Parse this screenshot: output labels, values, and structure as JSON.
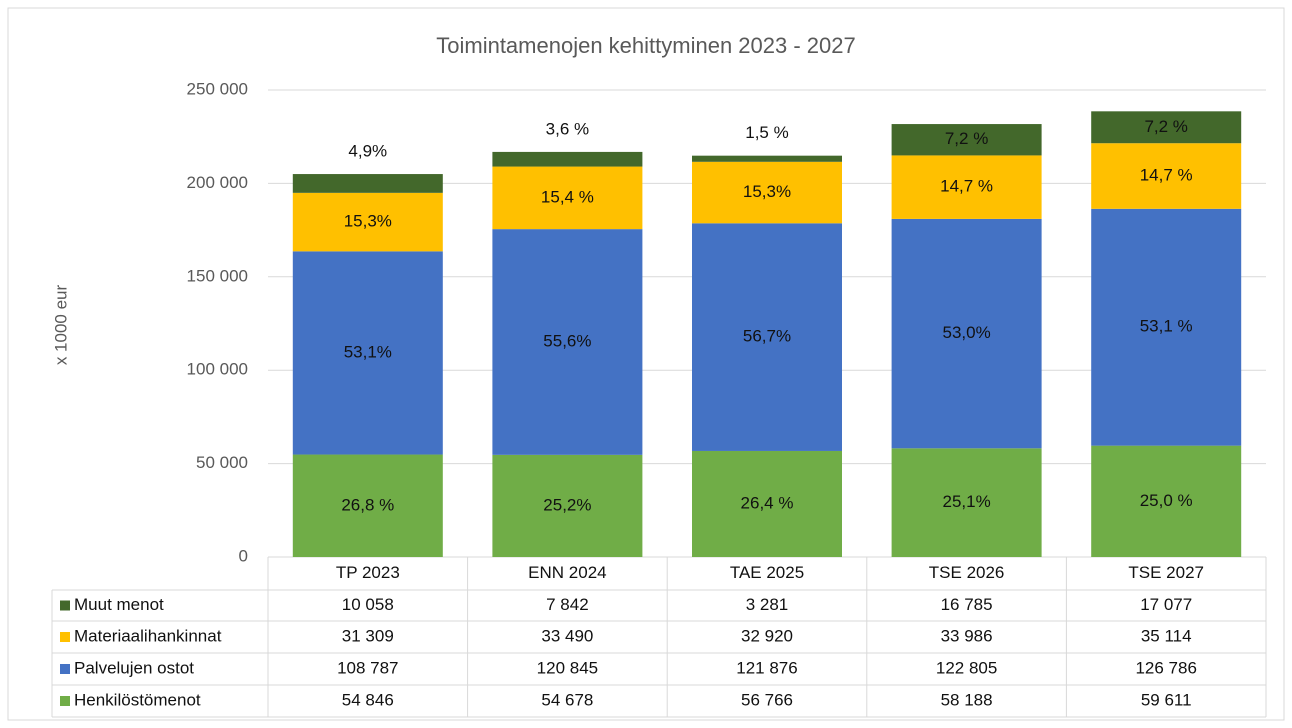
{
  "chart_data": {
    "type": "stacked_bar",
    "title": "Toimintamenojen kehittyminen 2023 - 2027",
    "y_label": "x 1000 eur",
    "categories": [
      "TP 2023",
      "ENN 2024",
      "TAE 2025",
      "TSE 2026",
      "TSE 2027"
    ],
    "series": [
      {
        "name": "Henkilöstömenot",
        "color": "#70ad47",
        "values": [
          54846,
          54678,
          56766,
          58188,
          59611
        ],
        "value_labels": [
          "54 846",
          "54 678",
          "56 766",
          "58 188",
          "59 611"
        ],
        "share_labels": [
          "26,8 %",
          "25,2%",
          "26,4 %",
          "25,1%",
          "25,0 %"
        ]
      },
      {
        "name": "Palvelujen ostot",
        "color": "#4472c4",
        "values": [
          108787,
          120845,
          121876,
          122805,
          126786
        ],
        "value_labels": [
          "108 787",
          "120 845",
          "121 876",
          "122 805",
          "126 786"
        ],
        "share_labels": [
          "53,1%",
          "55,6%",
          "56,7%",
          "53,0%",
          "53,1 %"
        ]
      },
      {
        "name": "Materiaalihankinnat",
        "color": "#ffc000",
        "values": [
          31309,
          33490,
          32920,
          33986,
          35114
        ],
        "value_labels": [
          "31 309",
          "33 490",
          "32 920",
          "33 986",
          "35 114"
        ],
        "share_labels": [
          "15,3%",
          "15,4 %",
          "15,3%",
          "14,7 %",
          "14,7 %"
        ]
      },
      {
        "name": "Muut menot",
        "color": "#43682b",
        "values": [
          10058,
          7842,
          3281,
          16785,
          17077
        ],
        "value_labels": [
          "10 058",
          "7 842",
          "3 281",
          "16 785",
          "17 077"
        ],
        "share_labels": [
          "4,9%",
          "3,6 %",
          "1,5 %",
          "7,2 %",
          "7,2 %"
        ]
      }
    ],
    "ylim": [
      0,
      250000
    ],
    "yticks": [
      0,
      {
        "value": 50000,
        "label": "50 000"
      },
      {
        "value": 100000,
        "label": "100 000"
      },
      {
        "value": 150000,
        "label": "150 000"
      },
      {
        "value": 200000,
        "label": "200 000"
      },
      {
        "value": 250000,
        "label": "250 000"
      }
    ],
    "grid": true
  }
}
